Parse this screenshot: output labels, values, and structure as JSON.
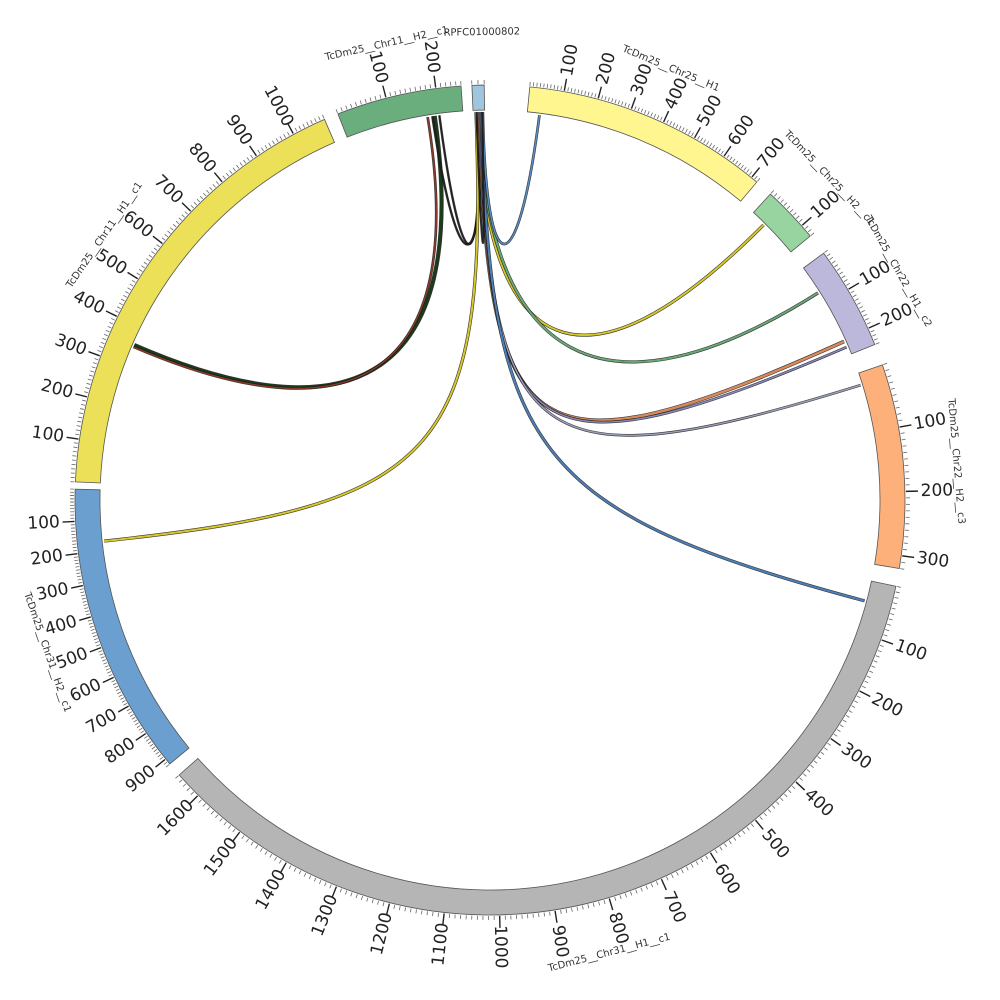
{
  "chart_data": {
    "type": "chord",
    "title": "",
    "tick_interval": 10,
    "label_interval": 100,
    "segments": [
      {
        "id": "chr25_h1",
        "name": "TcDm25__Chr25__H1",
        "length": 720,
        "color": "#FFF68F",
        "start_deg": 5.5,
        "end_deg": 40.0,
        "reverse": false,
        "labels": [
          "100",
          "200",
          "300",
          "400",
          "500",
          "600",
          "700"
        ]
      },
      {
        "id": "chr25_h2",
        "name": "TcDm25__Chr25__H2__c1",
        "length": 130,
        "color": "#98D4A0",
        "start_deg": 42.5,
        "end_deg": 50.5,
        "reverse": false,
        "labels": [
          "100"
        ]
      },
      {
        "id": "chr22_h1",
        "name": "TcDm25__Chr22__H1__c2",
        "length": 240,
        "color": "#BCB8DC",
        "start_deg": 53.5,
        "end_deg": 68.0,
        "reverse": false,
        "labels": [
          "100",
          "200"
        ]
      },
      {
        "id": "chr22_h2",
        "name": "TcDm25__Chr22__H2__c3",
        "length": 320,
        "color": "#FDB07A",
        "start_deg": 71.0,
        "end_deg": 99.5,
        "reverse": false,
        "labels": [
          "100",
          "200",
          "300"
        ]
      },
      {
        "id": "chr31_h1",
        "name": "TcDm25__Chr31__H1__c1",
        "length": 1650,
        "color": "#B5B5B5",
        "start_deg": 102.0,
        "end_deg": 228.5,
        "reverse": false,
        "labels": [
          "100",
          "200",
          "300",
          "400",
          "500",
          "600",
          "700",
          "800",
          "900",
          "1000",
          "1100",
          "1200",
          "1300",
          "1400",
          "1500",
          "1600"
        ]
      },
      {
        "id": "chr31_h2",
        "name": "TcDm25__Chr31__H2__c1",
        "length": 920,
        "color": "#6A9FCF",
        "start_deg": 230.5,
        "end_deg": 271.5,
        "reverse": true,
        "labels": [
          "100",
          "200",
          "300",
          "400",
          "500",
          "600",
          "700",
          "800",
          "900"
        ]
      },
      {
        "id": "chr11_h1",
        "name": "TcDm25__Chr11__H1__c1",
        "length": 1080,
        "color": "#EBE058",
        "start_deg": 272.5,
        "end_deg": 336.5,
        "reverse": false,
        "labels": [
          "100",
          "200",
          "300",
          "400",
          "500",
          "600",
          "700",
          "800",
          "900",
          "1000"
        ]
      },
      {
        "id": "chr11_h2",
        "name": "TcDm25__Chr11__H2__c1",
        "length": 250,
        "color": "#6BAE7E",
        "start_deg": 338.5,
        "end_deg": 356.0,
        "reverse": false,
        "labels": [
          "100",
          "200"
        ]
      },
      {
        "id": "rpfc",
        "name": "RPFC01000802",
        "length": 20,
        "color": "#9EC7DE",
        "start_deg": 357.5,
        "end_deg": 359.2,
        "reverse": false,
        "labels": []
      }
    ],
    "links": [
      {
        "from_seg": "chr11_h2",
        "from_pos": 190,
        "to_seg": "chr11_h1",
        "to_pos": 355,
        "color": "#1a3c1a",
        "width": 3
      },
      {
        "from_seg": "chr11_h2",
        "from_pos": 175,
        "to_seg": "chr11_h1",
        "to_pos": 350,
        "color": "#8a3a2a",
        "width": 1.5
      },
      {
        "from_seg": "rpfc",
        "from_pos": 8,
        "to_seg": "chr11_h2",
        "to_pos": 200,
        "color": "#222222",
        "width": 1.2
      },
      {
        "from_seg": "rpfc",
        "from_pos": 12,
        "to_seg": "chr11_h2",
        "to_pos": 185,
        "color": "#222222",
        "width": 1.2
      },
      {
        "from_seg": "rpfc",
        "from_pos": 5,
        "to_seg": "chr31_h2",
        "to_pos": 170,
        "color": "#d8c82a",
        "width": 2
      },
      {
        "from_seg": "rpfc",
        "from_pos": 7,
        "to_seg": "chr25_h2",
        "to_pos": 38,
        "color": "#d8c82a",
        "width": 2
      },
      {
        "from_seg": "rpfc",
        "from_pos": 9,
        "to_seg": "chr22_h1",
        "to_pos": 70,
        "color": "#6aa878",
        "width": 2
      },
      {
        "from_seg": "rpfc",
        "from_pos": 10,
        "to_seg": "chr22_h1",
        "to_pos": 205,
        "color": "#d88a5a",
        "width": 2.5
      },
      {
        "from_seg": "rpfc",
        "from_pos": 11,
        "to_seg": "chr22_h1",
        "to_pos": 220,
        "color": "#8888bb",
        "width": 1.5
      },
      {
        "from_seg": "rpfc",
        "from_pos": 13,
        "to_seg": "chr22_h2",
        "to_pos": 20,
        "color": "#9aa0b8",
        "width": 1.5
      },
      {
        "from_seg": "rpfc",
        "from_pos": 15,
        "to_seg": "chr31_h1",
        "to_pos": 40,
        "color": "#4d7fb8",
        "width": 2
      },
      {
        "from_seg": "rpfc",
        "from_pos": 17,
        "to_seg": "chr25_h1",
        "to_pos": 38,
        "color": "#5b8fc4",
        "width": 1.5
      },
      {
        "from_seg": "rpfc",
        "from_pos": 6,
        "to_seg": "rpfc",
        "to_pos": 16,
        "color": "#222222",
        "width": 1
      }
    ]
  }
}
